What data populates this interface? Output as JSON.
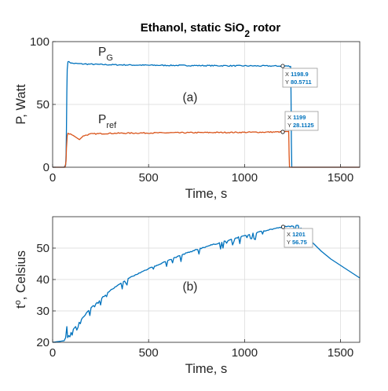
{
  "figure": {
    "title_main": "Ethanol, static SiO",
    "title_sub": "2",
    "title_tail": " rotor"
  },
  "chart_data": [
    {
      "type": "line",
      "panel_label": "(a)",
      "xlabel": "Time, s",
      "ylabel": "P, Watt",
      "xlim": [
        0,
        1600
      ],
      "ylim": [
        0,
        100
      ],
      "xticks": [
        0,
        500,
        1000,
        1500
      ],
      "yticks": [
        0,
        50,
        100
      ],
      "grid": true,
      "series": [
        {
          "name": "P",
          "name_sub": "G",
          "color": "#0072BD",
          "points": [
            [
              0,
              0
            ],
            [
              60,
              0
            ],
            [
              64,
              1
            ],
            [
              68,
              2
            ],
            [
              70,
              10
            ],
            [
              72,
              30
            ],
            [
              74,
              60
            ],
            [
              76,
              78
            ],
            [
              80,
              84
            ],
            [
              90,
              83.5
            ],
            [
              100,
              82.8
            ],
            [
              150,
              82.3
            ],
            [
              200,
              82
            ],
            [
              300,
              81.6
            ],
            [
              500,
              81.2
            ],
            [
              800,
              80.9
            ],
            [
              1000,
              80.7
            ],
            [
              1198.9,
              80.5711
            ],
            [
              1240,
              80.5
            ],
            [
              1242,
              60
            ],
            [
              1244,
              20
            ],
            [
              1246,
              0
            ],
            [
              1600,
              0
            ]
          ]
        },
        {
          "name": "P",
          "name_sub": "ref",
          "color": "#D95319",
          "points": [
            [
              0,
              0
            ],
            [
              60,
              0
            ],
            [
              65,
              0
            ],
            [
              70,
              5
            ],
            [
              72,
              15
            ],
            [
              76,
              25
            ],
            [
              80,
              27
            ],
            [
              100,
              26
            ],
            [
              140,
              22
            ],
            [
              160,
              25
            ],
            [
              200,
              26.5
            ],
            [
              300,
              27
            ],
            [
              500,
              27.3
            ],
            [
              800,
              27.6
            ],
            [
              1000,
              27.8
            ],
            [
              1199,
              28.1125
            ],
            [
              1230,
              28.2
            ],
            [
              1232,
              10
            ],
            [
              1234,
              0
            ],
            [
              1600,
              0
            ]
          ]
        }
      ],
      "datatips": [
        {
          "series": "P_G",
          "x": 1198.9,
          "y": 80.5711,
          "x_label": "X",
          "x_value": "1198.9",
          "y_label": "Y",
          "y_value": "80.5711"
        },
        {
          "series": "P_ref",
          "x": 1199,
          "y": 28.1125,
          "x_label": "X",
          "x_value": "1199",
          "y_label": "Y",
          "y_value": "28.1125"
        }
      ]
    },
    {
      "type": "line",
      "panel_label": "(b)",
      "xlabel": "Time, s",
      "ylabel": "t, Celsius",
      "ylabel_sup": "o",
      "xlim": [
        0,
        1600
      ],
      "ylim": [
        20,
        60
      ],
      "xticks": [
        0,
        500,
        1000,
        1500
      ],
      "yticks": [
        20,
        30,
        40,
        50
      ],
      "grid": true,
      "series": [
        {
          "name": "",
          "color": "#0072BD",
          "points": [
            [
              0,
              20
            ],
            [
              60,
              20.5
            ],
            [
              68,
              21.5
            ],
            [
              74,
              25
            ],
            [
              78,
              21.5
            ],
            [
              120,
              25
            ],
            [
              200,
              31
            ],
            [
              300,
              36.5
            ],
            [
              400,
              40.5
            ],
            [
              500,
              43.5
            ],
            [
              600,
              46
            ],
            [
              700,
              48.5
            ],
            [
              800,
              50.5
            ],
            [
              900,
              52.2
            ],
            [
              1000,
              54
            ],
            [
              1100,
              55.5
            ],
            [
              1201,
              56.75
            ],
            [
              1250,
              57
            ],
            [
              1280,
              57.2
            ],
            [
              1300,
              56
            ],
            [
              1350,
              52
            ],
            [
              1400,
              49
            ],
            [
              1450,
              46.5
            ],
            [
              1500,
              44.5
            ],
            [
              1550,
              42.5
            ],
            [
              1600,
              40.5
            ]
          ]
        }
      ],
      "datatips": [
        {
          "x": 1201,
          "y": 56.75,
          "x_label": "X",
          "x_value": "1201",
          "y_label": "Y",
          "y_value": "56.75"
        }
      ]
    }
  ]
}
